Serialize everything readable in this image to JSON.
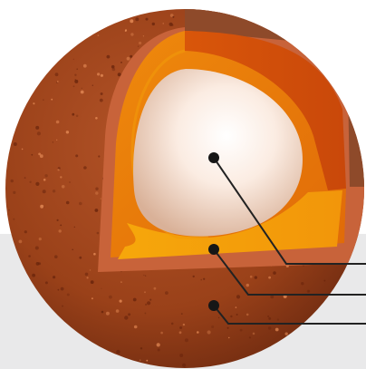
{
  "diagram": {
    "colors": {
      "background_bottom": "#e9e9ea",
      "crust_dark": "#7a2f12",
      "crust_mid": "#a8481f",
      "crust_light": "#c9653a",
      "crust_cut": "#d0683e",
      "crust_cut_top": "#8b4a2a",
      "mantle": "#d2560c",
      "mantle_light": "#ee8a10",
      "outer_core": "#f6a50a",
      "inner_core_center": "#ffffff",
      "inner_core_edge": "#dcb8a0",
      "leader": "#222222",
      "dot": "#161616"
    },
    "callouts": [
      {
        "name": "inner-core"
      },
      {
        "name": "outer-core"
      },
      {
        "name": "crust"
      }
    ]
  }
}
